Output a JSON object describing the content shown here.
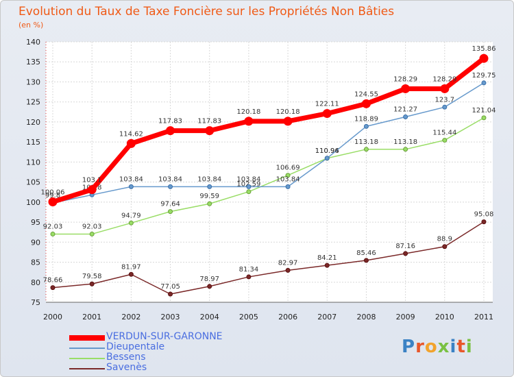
{
  "title": "Evolution du Taux de Taxe Foncière sur les Propriétés Non Bâties",
  "unit": "(en %)",
  "logo": "Proxiti",
  "chart_data": {
    "type": "line",
    "x": [
      "2000",
      "2001",
      "2002",
      "2003",
      "2004",
      "2005",
      "2006",
      "2007",
      "2008",
      "2009",
      "2010",
      "2011"
    ],
    "ylim": [
      75,
      140
    ],
    "yticks": [
      75,
      80,
      85,
      90,
      95,
      100,
      105,
      110,
      115,
      120,
      125,
      130,
      135,
      140
    ],
    "series": [
      {
        "name": "VERDUN-SUR-GARONNE",
        "color": "#ff0000",
        "width": 7,
        "values": [
          100.06,
          103.11,
          114.62,
          117.83,
          117.83,
          120.18,
          120.18,
          122.11,
          124.55,
          128.29,
          128.29,
          135.86
        ],
        "labels": [
          "100.06",
          "103.1",
          "114.62",
          "117.83",
          "117.83",
          "120.18",
          "120.18",
          "122.11",
          "124.55",
          "128.29",
          "128.29",
          "135.86"
        ]
      },
      {
        "name": "Dieupentale",
        "color": "#6699cc",
        "width": 1.5,
        "values": [
          99.8,
          101.8,
          103.84,
          103.84,
          103.84,
          103.84,
          103.84,
          110.96,
          118.89,
          121.27,
          123.7,
          129.75
        ],
        "labels": [
          "99.8",
          "101.8",
          "103.84",
          "103.84",
          "103.84",
          "103.84",
          "103.84",
          "110.96",
          "118.89",
          "121.27",
          "123.7",
          "129.75"
        ]
      },
      {
        "name": "Bessens",
        "color": "#99dd66",
        "width": 1.5,
        "values": [
          92.03,
          92.03,
          94.79,
          97.64,
          99.59,
          102.59,
          106.69,
          110.94,
          113.18,
          113.18,
          115.44,
          121.04
        ],
        "labels": [
          "92.03",
          "92.03",
          "94.79",
          "97.64",
          "99.59",
          "102.59",
          "106.69",
          "110.94",
          "113.18",
          "113.18",
          "115.44",
          "121.04"
        ]
      },
      {
        "name": "Savenès",
        "color": "#7a2828",
        "width": 1.5,
        "values": [
          78.66,
          79.58,
          81.97,
          77.05,
          78.97,
          81.34,
          82.97,
          84.21,
          85.46,
          87.16,
          88.9,
          95.08
        ],
        "labels": [
          "78.66",
          "79.58",
          "81.97",
          "77.05",
          "78.97",
          "81.34",
          "82.97",
          "84.21",
          "85.46",
          "87.16",
          "88.9",
          "95.08"
        ]
      }
    ]
  }
}
